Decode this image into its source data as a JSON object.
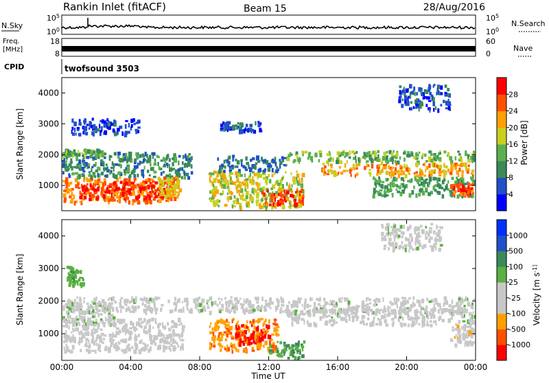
{
  "header": {
    "title": "Rankin Inlet (fitACF)",
    "beam": "Beam 15",
    "date": "28/Aug/2016"
  },
  "top_panels": {
    "nsky_label": "N.Sky",
    "nsky_ticks": [
      "10^5",
      "10^0"
    ],
    "nsearch_label": "N.Search",
    "nsearch_ticks": [
      "10^5",
      "10^0"
    ],
    "freq_label_line1": "Freq.",
    "freq_label_line2": "[MHz]",
    "freq_ticks": [
      "18",
      "8"
    ],
    "nave_label": "Nave",
    "nave_ticks": [
      "60",
      "0"
    ],
    "cpid_label": "CPID",
    "cpid_value": "twofsound 3503"
  },
  "colors": {
    "power_scale": [
      "#0000ff",
      "#2050c8",
      "#3a8a5a",
      "#5ab050",
      "#c8d020",
      "#ffa000",
      "#ff5000",
      "#ff0000"
    ],
    "velocity_scale": [
      "#ff0000",
      "#ff5000",
      "#ffa000",
      "#c8c8c8",
      "#c8c8c8",
      "#5ab040",
      "#3a8a5a",
      "#2050c8",
      "#0030ff"
    ]
  },
  "chart_data": [
    {
      "type": "heatmap",
      "ylabel": "Slant Range [km]",
      "ylim": [
        180,
        4500
      ],
      "yticks": [
        "1000",
        "2000",
        "3000",
        "4000"
      ],
      "xlim": [
        0,
        24
      ],
      "colorbar": {
        "label": "Power [dB]",
        "ticks": [
          "4",
          "8",
          "12",
          "16",
          "20",
          "24",
          "28"
        ],
        "range": [
          0,
          32
        ]
      },
      "regions": [
        {
          "t0": 0,
          "t1": 6.5,
          "r0": 500,
          "r1": 1300,
          "value": 24
        },
        {
          "t0": 1.0,
          "t1": 6.3,
          "r0": 600,
          "r1": 1150,
          "value": 29
        },
        {
          "t0": 0,
          "t1": 7.5,
          "r0": 1300,
          "r1": 2100,
          "value": 10
        },
        {
          "t0": 0,
          "t1": 2.5,
          "r0": 2000,
          "r1": 2200,
          "value": 14
        },
        {
          "t0": 5.5,
          "t1": 6.8,
          "r0": 700,
          "r1": 1300,
          "value": 20
        },
        {
          "t0": 8.5,
          "t1": 14.0,
          "r0": 300,
          "r1": 1500,
          "value": 18
        },
        {
          "t0": 11.5,
          "t1": 14.0,
          "r0": 400,
          "r1": 900,
          "value": 27
        },
        {
          "t0": 9.0,
          "t1": 13.0,
          "r0": 1500,
          "r1": 2000,
          "value": 8
        },
        {
          "t0": 13.0,
          "t1": 24,
          "r0": 1800,
          "r1": 2150,
          "value": 14
        },
        {
          "t0": 15.0,
          "t1": 24,
          "r0": 1350,
          "r1": 1750,
          "value": 22
        },
        {
          "t0": 18.0,
          "t1": 24,
          "r0": 700,
          "r1": 1300,
          "value": 12
        },
        {
          "t0": 22.5,
          "t1": 24,
          "r0": 700,
          "r1": 1100,
          "value": 26
        },
        {
          "t0": 19.5,
          "t1": 22.5,
          "r0": 3500,
          "r1": 4300,
          "value": 6
        },
        {
          "t0": 9.0,
          "t1": 11.5,
          "r0": 2800,
          "r1": 3100,
          "value": 6
        },
        {
          "t0": 0.5,
          "t1": 4.5,
          "r0": 2700,
          "r1": 3200,
          "value": 5
        }
      ]
    },
    {
      "type": "heatmap",
      "xlabel": "Time UT",
      "ylabel": "Slant Range [km]",
      "ylim": [
        180,
        4500
      ],
      "yticks": [
        "1000",
        "2000",
        "3000",
        "4000"
      ],
      "xlim": [
        0,
        24
      ],
      "xticks": [
        "00:00",
        "04:00",
        "08:00",
        "12:00",
        "16:00",
        "20:00",
        "00:00"
      ],
      "colorbar": {
        "label": "Velocity [m s^-1]",
        "ticks": [
          "1000",
          "500",
          "100",
          "25",
          "-25",
          "-100",
          "-500",
          "-1000"
        ],
        "range": [
          -1200,
          1200
        ]
      },
      "regions": [
        {
          "t0": 0,
          "t1": 7.0,
          "r0": 500,
          "r1": 1500,
          "value": 150
        },
        {
          "t0": 0,
          "t1": 3.0,
          "r0": 1300,
          "r1": 2000,
          "value": -80
        },
        {
          "t0": 0,
          "t1": 24,
          "r0": 1700,
          "r1": 2150,
          "value": 0
        },
        {
          "t0": 8.5,
          "t1": 12.5,
          "r0": 500,
          "r1": 1500,
          "value": 600
        },
        {
          "t0": 10.0,
          "t1": 12.0,
          "r0": 700,
          "r1": 1300,
          "value": 1050
        },
        {
          "t0": 12.0,
          "t1": 14.0,
          "r0": 250,
          "r1": 800,
          "value": -400
        },
        {
          "t0": 13.0,
          "t1": 24,
          "r0": 1300,
          "r1": 1800,
          "value": 0
        },
        {
          "t0": 22.5,
          "t1": 24,
          "r0": 700,
          "r1": 1300,
          "value": 300
        },
        {
          "t0": 18.5,
          "t1": 22.0,
          "r0": 3600,
          "r1": 4400,
          "value": 0
        },
        {
          "t0": 0.2,
          "t1": 1.2,
          "r0": 2500,
          "r1": 3100,
          "value": -300
        }
      ]
    }
  ]
}
